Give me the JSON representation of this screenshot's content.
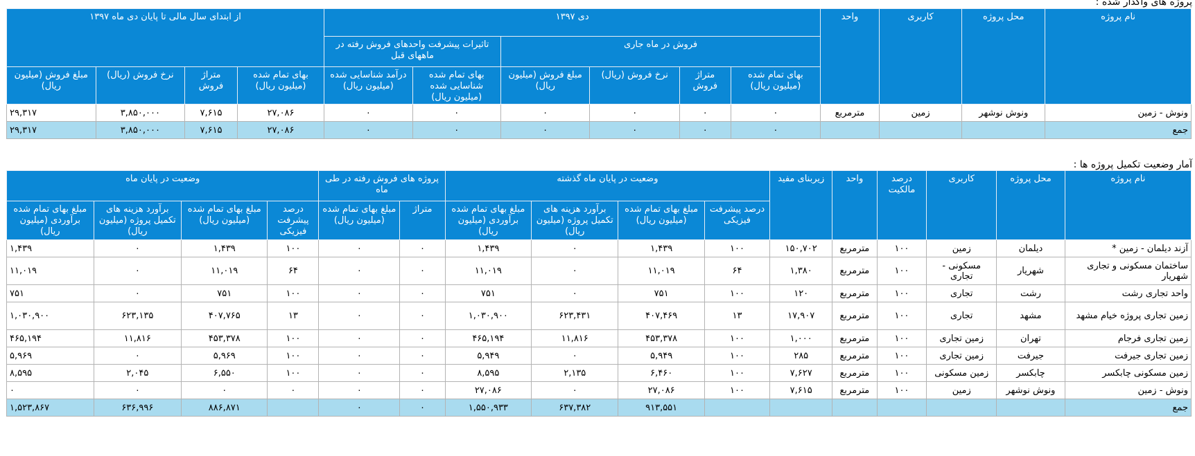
{
  "section1": {
    "title": "پروژه های واگذار شده :",
    "headers": {
      "name": "نام پروژه",
      "location": "محل پروژه",
      "usage": "کاربری",
      "unit": "واحد",
      "month": "دی ۱۳۹۷",
      "ytd": "از ابتدای سال مالی تا پایان دی ماه ۱۳۹۷",
      "current_sales": "فروش در ماه جاری",
      "prior_effects": "تاثیرات پیشرفت واحدهای فروش رفته در ماههای قبل",
      "cost": "بهای تمام شده (میلیون ریال)",
      "area": "متراژ فروش",
      "rate": "نرخ فروش (ریال)",
      "amount": "مبلغ فروش (میلیون ریال)",
      "prior_cost": "بهای تمام شده شناسایی شده (میلیون ریال)",
      "prior_income": "درآمد شناسایی شده (میلیون ریال)"
    },
    "rows": [
      {
        "name": "ونوش - زمین",
        "location": "ونوش نوشهر",
        "usage": "زمین",
        "unit": "مترمربع",
        "c1": "۰",
        "c2": "۰",
        "c3": "۰",
        "c4": "۰",
        "c5": "۰",
        "c6": "۰",
        "y1": "۲۷,۰۸۶",
        "y2": "۷,۶۱۵",
        "y3": "۳,۸۵۰,۰۰۰",
        "y4": "۲۹,۳۱۷"
      }
    ],
    "total": {
      "name": "جمع",
      "c1": "۰",
      "c2": "۰",
      "c3": "۰",
      "c4": "۰",
      "c5": "۰",
      "c6": "۰",
      "y1": "۲۷,۰۸۶",
      "y2": "۷,۶۱۵",
      "y3": "۳,۸۵۰,۰۰۰",
      "y4": "۲۹,۳۱۷"
    }
  },
  "section2": {
    "title": "آمار وضعیت تکمیل پروژه ها :",
    "headers": {
      "name": "نام پروژه",
      "location": "محل پروژه",
      "usage": "کاربری",
      "ownership": "درصد مالکیت",
      "unit": "واحد",
      "area": "زیربنای مفید",
      "last_month": "وضعیت در پایان ماه گذشته",
      "sold_projects": "پروژه های فروش رفته در طی ماه",
      "end_month": "وضعیت در پایان ماه",
      "progress": "درصد پیشرفت فیزیکی",
      "cost_amount": "مبلغ بهای تمام شده (میلیون ریال)",
      "completion_estimate": "برآورد هزینه های تکمیل پروژه (میلیون ریال)",
      "estimated_cost": "مبلغ بهای تمام شده برآوردی (میلیون ریال)",
      "meterage": "متراژ",
      "sold_cost": "مبلغ بهای تمام شده (میلیون ریال)"
    },
    "rows": [
      {
        "name": "آزند دیلمان - زمین *",
        "location": "دیلمان",
        "usage": "زمین",
        "own": "۱۰۰",
        "unit": "مترمربع",
        "area": "۱۵۰,۷۰۲",
        "l1": "۱۰۰",
        "l2": "۱,۴۳۹",
        "l3": "۰",
        "l4": "۱,۴۳۹",
        "s1": "۰",
        "s2": "۰",
        "e1": "۱۰۰",
        "e2": "۱,۴۳۹",
        "e3": "۰",
        "e4": "۱,۴۳۹"
      },
      {
        "name": "ساختمان مسکونی و تجاری شهریار",
        "location": "شهریار",
        "usage": "مسکونی - تجاری",
        "own": "۱۰۰",
        "unit": "مترمربع",
        "area": "۱,۳۸۰",
        "l1": "۶۴",
        "l2": "۱۱,۰۱۹",
        "l3": "۰",
        "l4": "۱۱,۰۱۹",
        "s1": "۰",
        "s2": "۰",
        "e1": "۶۴",
        "e2": "۱۱,۰۱۹",
        "e3": "۰",
        "e4": "۱۱,۰۱۹"
      },
      {
        "name": "واحد تجاری رشت",
        "location": "رشت",
        "usage": "تجاری",
        "own": "۱۰۰",
        "unit": "مترمربع",
        "area": "۱۲۰",
        "l1": "۱۰۰",
        "l2": "۷۵۱",
        "l3": "۰",
        "l4": "۷۵۱",
        "s1": "۰",
        "s2": "۰",
        "e1": "۱۰۰",
        "e2": "۷۵۱",
        "e3": "۰",
        "e4": "۷۵۱"
      },
      {
        "name": "زمین تجاری پروژه خیام مشهد",
        "location": "مشهد",
        "usage": "تجاری",
        "own": "۱۰۰",
        "unit": "مترمربع",
        "area": "۱۷,۹۰۷",
        "l1": "۱۳",
        "l2": "۴۰۷,۴۶۹",
        "l3": "۶۲۳,۴۳۱",
        "l4": "۱,۰۳۰,۹۰۰",
        "s1": "۰",
        "s2": "۰",
        "e1": "۱۳",
        "e2": "۴۰۷,۷۶۵",
        "e3": "۶۲۳,۱۳۵",
        "e4": "۱,۰۳۰,۹۰۰"
      },
      {
        "name": "زمین تجاری فرجام",
        "location": "تهران",
        "usage": "زمین تجاری",
        "own": "۱۰۰",
        "unit": "مترمربع",
        "area": "۱,۰۰۰",
        "l1": "۱۰۰",
        "l2": "۴۵۳,۳۷۸",
        "l3": "۱۱,۸۱۶",
        "l4": "۴۶۵,۱۹۴",
        "s1": "۰",
        "s2": "۰",
        "e1": "۱۰۰",
        "e2": "۴۵۳,۳۷۸",
        "e3": "۱۱,۸۱۶",
        "e4": "۴۶۵,۱۹۴"
      },
      {
        "name": "زمین تجاری جیرفت",
        "location": "جیرفت",
        "usage": "زمین تجاری",
        "own": "۱۰۰",
        "unit": "مترمربع",
        "area": "۲۸۵",
        "l1": "۱۰۰",
        "l2": "۵,۹۴۹",
        "l3": "۰",
        "l4": "۵,۹۴۹",
        "s1": "۰",
        "s2": "۰",
        "e1": "۱۰۰",
        "e2": "۵,۹۶۹",
        "e3": "۰",
        "e4": "۵,۹۶۹"
      },
      {
        "name": "زمین مسکونی چابکسر",
        "location": "چابکسر",
        "usage": "زمین مسکونی",
        "own": "۱۰۰",
        "unit": "مترمربع",
        "area": "۷,۶۲۷",
        "l1": "۱۰۰",
        "l2": "۶,۴۶۰",
        "l3": "۲,۱۳۵",
        "l4": "۸,۵۹۵",
        "s1": "۰",
        "s2": "۰",
        "e1": "۱۰۰",
        "e2": "۶,۵۵۰",
        "e3": "۲,۰۴۵",
        "e4": "۸,۵۹۵"
      },
      {
        "name": "ونوش - زمین",
        "location": "ونوش نوشهر",
        "usage": "زمین",
        "own": "۱۰۰",
        "unit": "مترمربع",
        "area": "۷,۶۱۵",
        "l1": "۱۰۰",
        "l2": "۲۷,۰۸۶",
        "l3": "۰",
        "l4": "۲۷,۰۸۶",
        "s1": "۰",
        "s2": "۰",
        "e1": "۰",
        "e2": "۰",
        "e3": "۰",
        "e4": "۰"
      }
    ],
    "total": {
      "name": "جمع",
      "l2": "۹۱۳,۵۵۱",
      "l3": "۶۳۷,۳۸۲",
      "l4": "۱,۵۵۰,۹۳۳",
      "s1": "۰",
      "s2": "۰",
      "e2": "۸۸۶,۸۷۱",
      "e3": "۶۳۶,۹۹۶",
      "e4": "۱,۵۲۳,۸۶۷"
    }
  }
}
